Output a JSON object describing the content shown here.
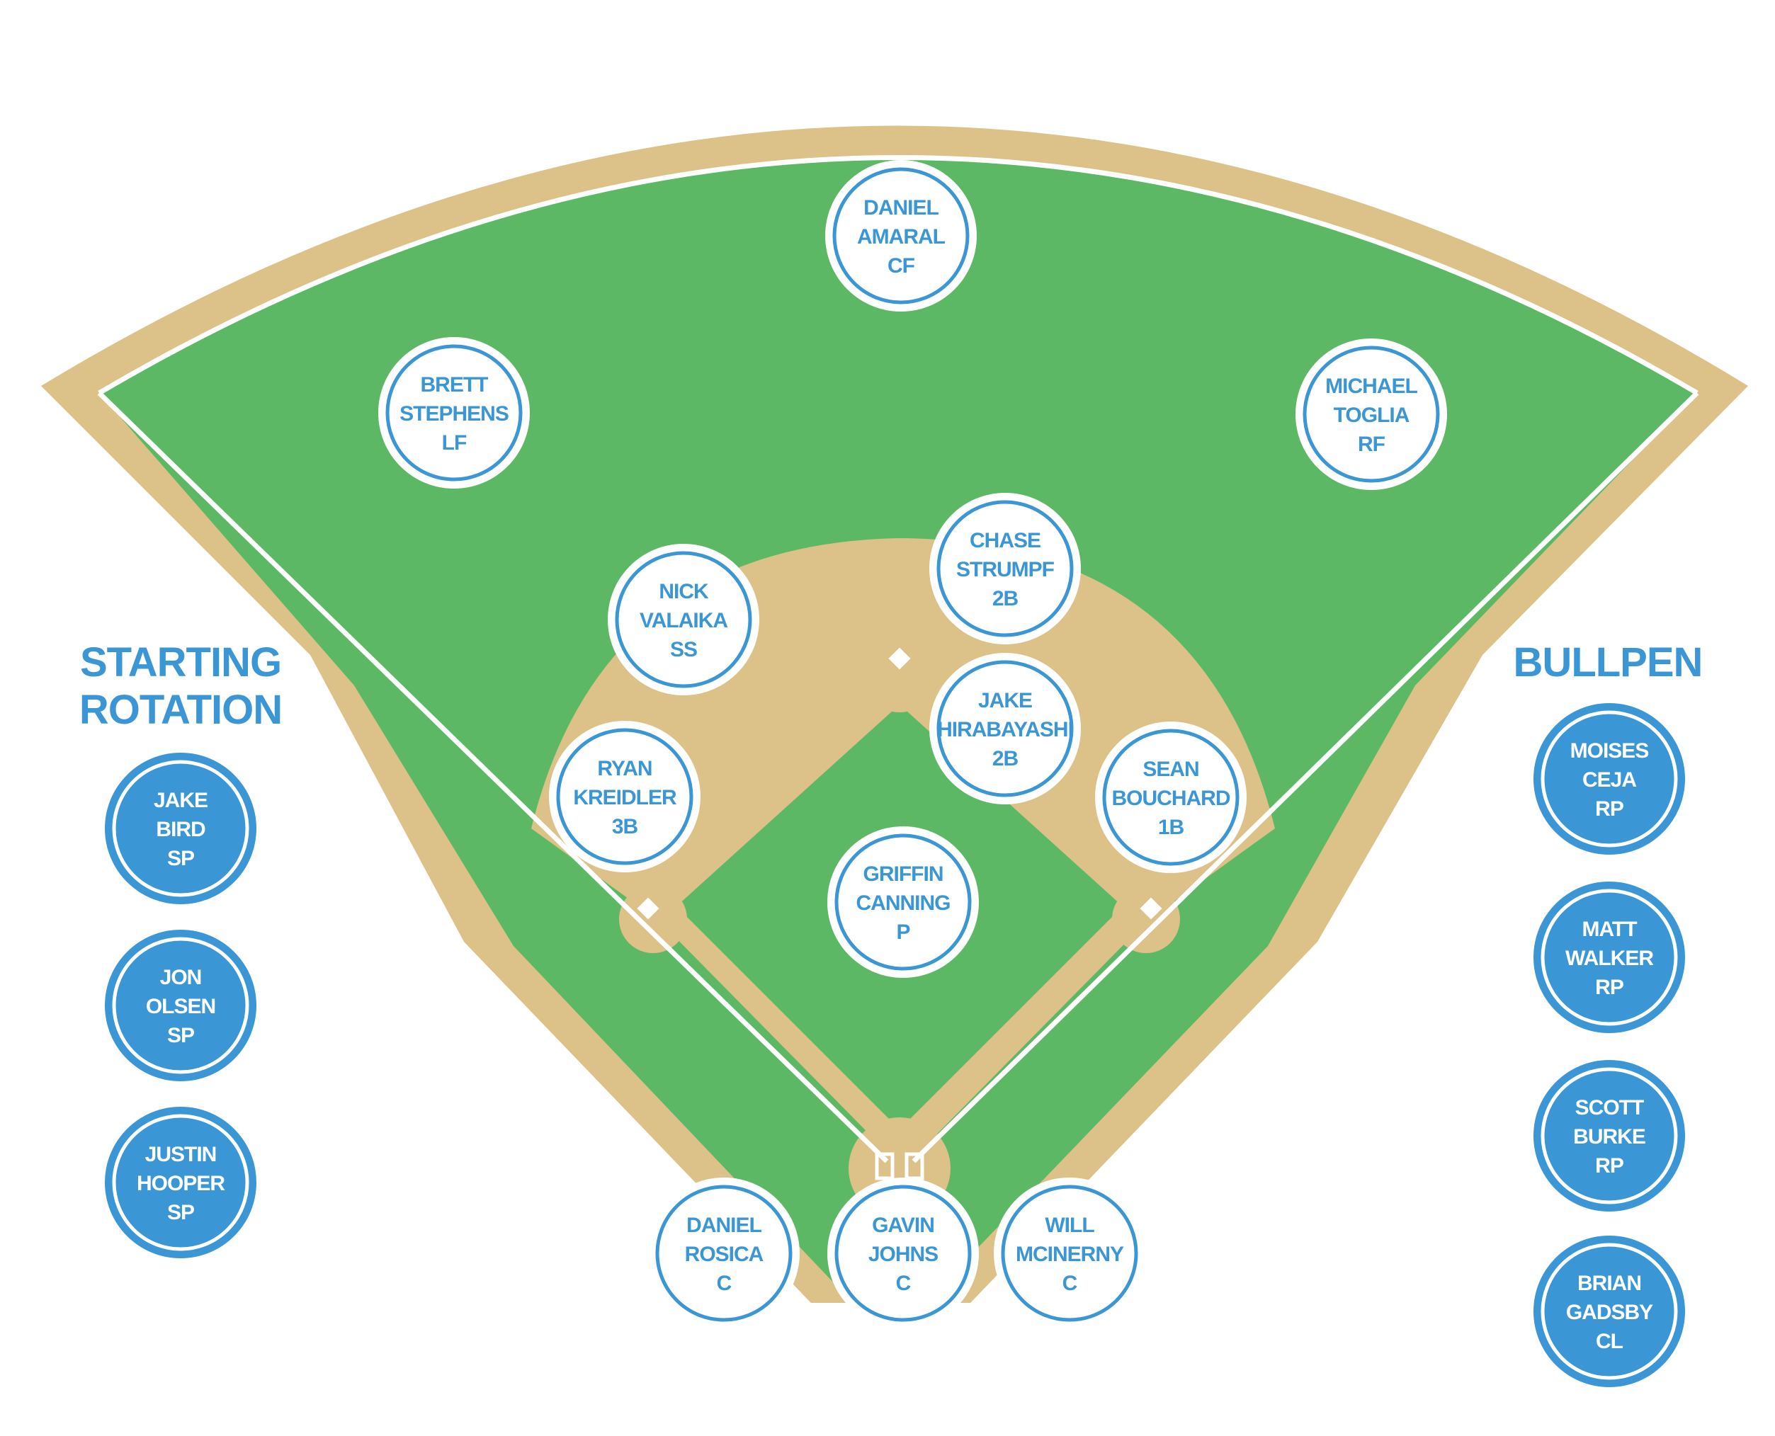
{
  "headings": {
    "rotation": [
      "STARTING",
      "ROTATION"
    ],
    "bullpen": "BULLPEN"
  },
  "colors": {
    "grass": "#5cb865",
    "dirt": "#dcc188",
    "chalk": "#ffffff",
    "blue": "#3a96d4"
  },
  "field_players": [
    {
      "id": "cf",
      "first": "DANIEL",
      "last": "AMARAL",
      "pos": "CF"
    },
    {
      "id": "lf",
      "first": "BRETT",
      "last": "STEPHENS",
      "pos": "LF"
    },
    {
      "id": "rf",
      "first": "MICHAEL",
      "last": "TOGLIA",
      "pos": "RF"
    },
    {
      "id": "2b-a",
      "first": "CHASE",
      "last": "STRUMPF",
      "pos": "2B"
    },
    {
      "id": "ss",
      "first": "NICK",
      "last": "VALAIKA",
      "pos": "SS"
    },
    {
      "id": "2b-b",
      "first": "JAKE",
      "last": "HIRABAYASHI",
      "pos": "2B"
    },
    {
      "id": "3b",
      "first": "RYAN",
      "last": "KREIDLER",
      "pos": "3B"
    },
    {
      "id": "1b",
      "first": "SEAN",
      "last": "BOUCHARD",
      "pos": "1B"
    },
    {
      "id": "p",
      "first": "GRIFFIN",
      "last": "CANNING",
      "pos": "P"
    },
    {
      "id": "c-left",
      "first": "DANIEL",
      "last": "ROSICA",
      "pos": "C"
    },
    {
      "id": "c-mid",
      "first": "GAVIN",
      "last": "JOHNS",
      "pos": "C"
    },
    {
      "id": "c-right",
      "first": "WILL",
      "last": "MCINERNY",
      "pos": "C"
    }
  ],
  "starting_rotation": [
    {
      "first": "JAKE",
      "last": "BIRD",
      "pos": "SP"
    },
    {
      "first": "JON",
      "last": "OLSEN",
      "pos": "SP"
    },
    {
      "first": "JUSTIN",
      "last": "HOOPER",
      "pos": "SP"
    }
  ],
  "bullpen": [
    {
      "first": "MOISES",
      "last": "CEJA",
      "pos": "RP"
    },
    {
      "first": "MATT",
      "last": "WALKER",
      "pos": "RP"
    },
    {
      "first": "SCOTT",
      "last": "BURKE",
      "pos": "RP"
    },
    {
      "first": "BRIAN",
      "last": "GADSBY",
      "pos": "CL"
    }
  ]
}
